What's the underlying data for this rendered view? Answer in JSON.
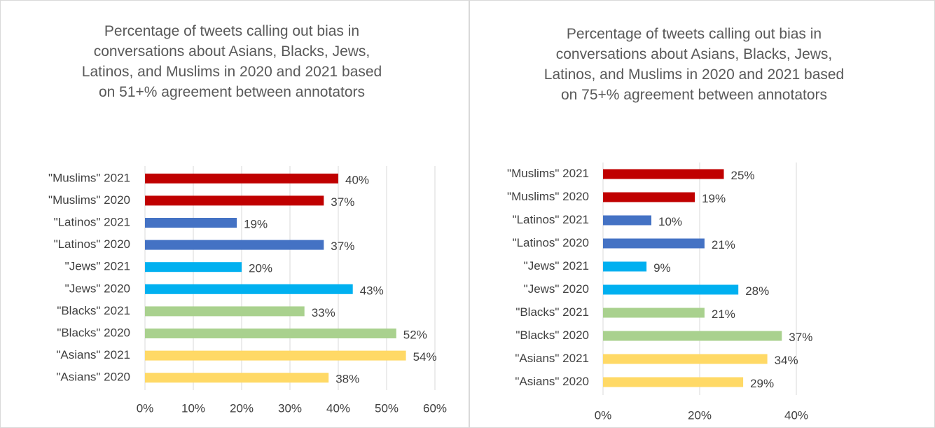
{
  "chart_data": [
    {
      "type": "bar",
      "orientation": "horizontal",
      "title": "Percentage of tweets calling out bias in conversations about Asians, Blacks, Jews, Latinos, and Muslims in 2020 and 2021 based on 51+% agreement between annotators",
      "categories": [
        "\"Muslims\" 2021",
        "\"Muslims\" 2020",
        "\"Latinos\" 2021",
        "\"Latinos\" 2020",
        "\"Jews\" 2021",
        "\"Jews\" 2020",
        "\"Blacks\" 2021",
        "\"Blacks\" 2020",
        "\"Asians\" 2021",
        "\"Asians\" 2020"
      ],
      "values": [
        40,
        37,
        19,
        37,
        20,
        43,
        33,
        52,
        54,
        38
      ],
      "value_labels": [
        "40%",
        "37%",
        "19%",
        "37%",
        "20%",
        "43%",
        "33%",
        "52%",
        "54%",
        "38%"
      ],
      "colors": [
        "#c00000",
        "#c00000",
        "#4472c4",
        "#4472c4",
        "#00b0f0",
        "#00b0f0",
        "#a9d18e",
        "#a9d18e",
        "#ffd966",
        "#ffd966"
      ],
      "xlim": [
        0,
        60
      ],
      "xticks": [
        {
          "value": 0,
          "label": "0%"
        },
        {
          "value": 10,
          "label": "10%"
        },
        {
          "value": 20,
          "label": "20%"
        },
        {
          "value": 30,
          "label": "30%"
        },
        {
          "value": 40,
          "label": "40%"
        },
        {
          "value": 50,
          "label": "50%"
        },
        {
          "value": 60,
          "label": "60%"
        }
      ],
      "grid": true
    },
    {
      "type": "bar",
      "orientation": "horizontal",
      "title": "Percentage of tweets calling out bias in conversations about Asians, Blacks, Jews, Latinos, and Muslims in 2020 and 2021 based on 75+% agreement between annotators",
      "categories": [
        "\"Muslims\" 2021",
        "\"Muslims\" 2020",
        "\"Latinos\" 2021",
        "\"Latinos\" 2020",
        "\"Jews\" 2021",
        "\"Jews\" 2020",
        "\"Blacks\" 2021",
        "\"Blacks\" 2020",
        "\"Asians\" 2021",
        "\"Asians\" 2020"
      ],
      "values": [
        25,
        19,
        10,
        21,
        9,
        28,
        21,
        37,
        34,
        29
      ],
      "value_labels": [
        "25%",
        "19%",
        "10%",
        "21%",
        "9%",
        "28%",
        "21%",
        "37%",
        "34%",
        "29%"
      ],
      "colors": [
        "#c00000",
        "#c00000",
        "#4472c4",
        "#4472c4",
        "#00b0f0",
        "#00b0f0",
        "#a9d18e",
        "#a9d18e",
        "#ffd966",
        "#ffd966"
      ],
      "xlim": [
        0,
        50
      ],
      "xticks": [
        {
          "value": 0,
          "label": "0%"
        },
        {
          "value": 20,
          "label": "20%"
        },
        {
          "value": 40,
          "label": "40%"
        }
      ],
      "grid": true
    }
  ]
}
